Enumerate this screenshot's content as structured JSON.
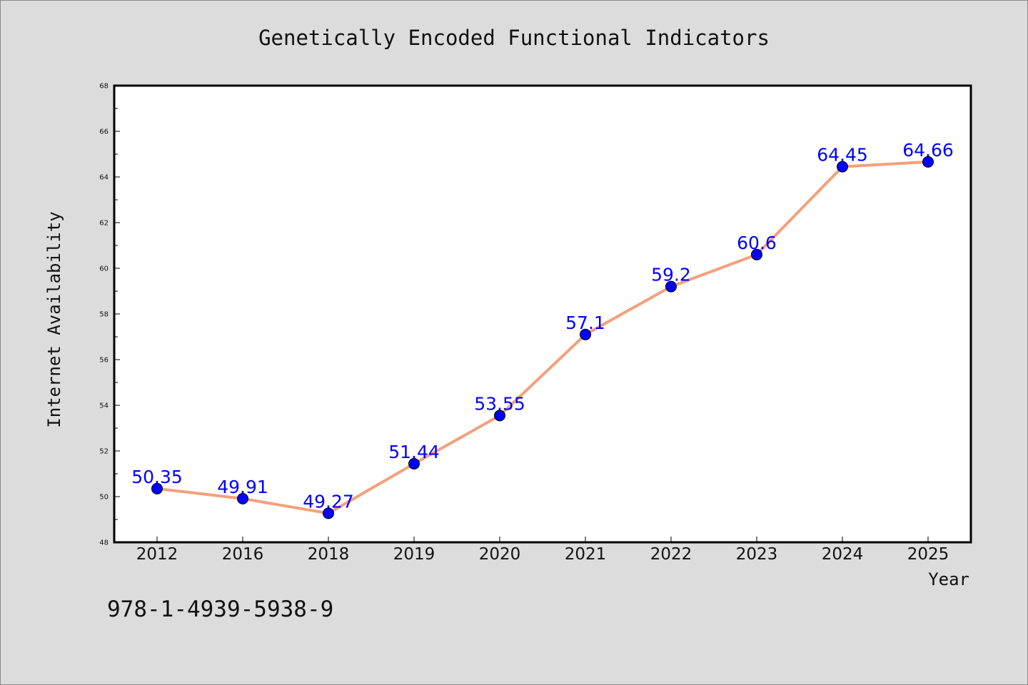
{
  "chart_data": {
    "type": "line",
    "title": "Genetically Encoded Functional Indicators",
    "xlabel": "Year",
    "ylabel": "Internet Availability",
    "categories": [
      "2012",
      "2016",
      "2018",
      "2019",
      "2020",
      "2021",
      "2022",
      "2023",
      "2024",
      "2025"
    ],
    "series": [
      {
        "values": [
          50.35,
          49.91,
          49.27,
          51.44,
          53.55,
          57.1,
          59.2,
          60.6,
          64.45,
          64.66
        ],
        "data_labels": [
          "50.35",
          "49.91",
          "49.27",
          "51.44",
          "53.55",
          "57.1",
          "59.2",
          "60.6",
          "64.45",
          "64.66"
        ],
        "line_color": "#f4a07c",
        "marker_color": "#0000ff"
      }
    ],
    "ylim": [
      48,
      68
    ],
    "yticks": [
      "48",
      "50",
      "52",
      "54",
      "56",
      "58",
      "60",
      "62",
      "64",
      "66",
      "68"
    ],
    "grid": false,
    "legend": "none"
  },
  "annotation": "978-1-4939-5938-9",
  "colors": {
    "background": "#dcdcdc",
    "plot_background": "#ffffff",
    "line": "#f4a07c",
    "marker": "#0000ff",
    "data_label": "#0000ff"
  }
}
